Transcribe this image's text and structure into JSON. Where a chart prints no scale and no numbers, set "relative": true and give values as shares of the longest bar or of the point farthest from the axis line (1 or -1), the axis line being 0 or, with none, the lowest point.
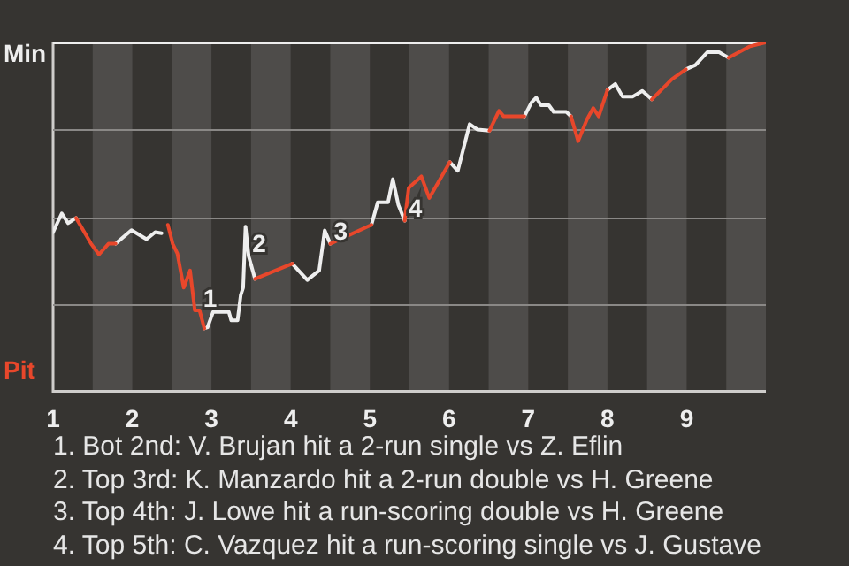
{
  "chart_data": {
    "type": "line",
    "relative": true,
    "xlim": [
      1,
      10
    ],
    "xticks": [
      1,
      2,
      3,
      4,
      5,
      6,
      7,
      8,
      9
    ],
    "legend": false,
    "marker": "none",
    "line_style": "solid",
    "series": [
      {
        "color": "#eeeeee",
        "x": [
          1.0,
          1.11,
          1.19,
          1.29,
          1.4,
          1.79,
          1.99,
          2.18,
          2.29,
          2.37,
          2.48,
          2.91,
          2.95,
          3.02,
          3.22,
          3.25,
          3.33,
          3.37,
          3.4,
          3.43,
          3.47,
          3.55,
          3.8,
          4.02,
          4.21,
          4.36,
          4.43,
          4.5,
          4.8,
          5.02,
          5.1,
          5.23,
          5.29,
          5.36,
          5.44,
          5.6,
          6.01,
          6.11,
          6.26,
          6.36,
          6.51,
          6.8,
          6.95,
          7.04,
          7.1,
          7.16,
          7.26,
          7.32,
          7.48,
          7.54,
          7.8,
          8.0,
          8.1,
          8.19,
          8.32,
          8.44,
          8.56,
          8.7,
          8.99,
          9.11,
          9.26,
          9.41,
          9.53
        ],
        "values": [
          0.456,
          0.51,
          0.482,
          0.497,
          null,
          0.423,
          0.462,
          0.436,
          0.456,
          0.453,
          null,
          0.18,
          0.183,
          0.227,
          0.227,
          0.203,
          0.203,
          0.276,
          0.297,
          0.472,
          0.387,
          0.322,
          null,
          0.366,
          0.319,
          0.346,
          0.461,
          0.423,
          null,
          0.477,
          0.542,
          0.542,
          0.608,
          0.534,
          0.489,
          null,
          0.657,
          0.632,
          0.766,
          0.75,
          0.747,
          null,
          0.788,
          0.828,
          0.842,
          0.82,
          0.82,
          0.801,
          0.801,
          0.788,
          null,
          0.864,
          0.881,
          0.845,
          0.845,
          0.861,
          0.837,
          null,
          0.923,
          0.935,
          0.972,
          0.972,
          0.956
        ]
      },
      {
        "color": "#e8472b",
        "x": [
          1.29,
          1.48,
          1.58,
          1.7,
          1.79,
          2.1,
          2.45,
          2.51,
          2.57,
          2.65,
          2.73,
          2.79,
          2.85,
          2.91,
          3.2,
          3.55,
          4.02,
          4.2,
          4.5,
          5.02,
          5.2,
          5.44,
          5.49,
          5.65,
          5.75,
          6.01,
          6.3,
          6.51,
          6.63,
          6.69,
          6.95,
          7.3,
          7.54,
          7.63,
          7.74,
          7.82,
          7.89,
          8.0,
          8.3,
          8.56,
          8.81,
          8.99,
          9.2,
          9.53,
          9.8,
          10
        ],
        "values": [
          0.497,
          0.423,
          0.392,
          0.423,
          0.423,
          null,
          0.477,
          0.423,
          0.395,
          0.297,
          0.346,
          0.232,
          0.232,
          0.18,
          null,
          0.322,
          0.366,
          null,
          0.423,
          0.477,
          null,
          0.489,
          0.583,
          0.616,
          0.554,
          0.657,
          null,
          0.747,
          0.804,
          0.788,
          0.788,
          null,
          0.788,
          0.717,
          0.779,
          0.812,
          0.788,
          0.864,
          null,
          0.837,
          0.894,
          0.923,
          null,
          0.956,
          0.989,
          1
        ]
      }
    ],
    "ref_lines": [
      {
        "axis": "y",
        "value": 1,
        "label": "Min",
        "color": "#eeeeee"
      },
      {
        "axis": "y",
        "value": 0.75,
        "color": "#8a8886"
      },
      {
        "axis": "y",
        "value": 0.5,
        "color": "#8a8886"
      },
      {
        "axis": "y",
        "value": 0.25,
        "color": "#8a8886"
      }
    ],
    "bands": [
      {
        "axis": "x",
        "from": 1.5,
        "to": 2,
        "color": "#4e4c4a"
      },
      {
        "axis": "x",
        "from": 2.5,
        "to": 3,
        "color": "#4e4c4a"
      },
      {
        "axis": "x",
        "from": 3.5,
        "to": 4,
        "color": "#4e4c4a"
      },
      {
        "axis": "x",
        "from": 4.5,
        "to": 5,
        "color": "#4e4c4a"
      },
      {
        "axis": "x",
        "from": 5.5,
        "to": 6,
        "color": "#4e4c4a"
      },
      {
        "axis": "x",
        "from": 6.5,
        "to": 7,
        "color": "#4e4c4a"
      },
      {
        "axis": "x",
        "from": 7.5,
        "to": 8,
        "color": "#4e4c4a"
      },
      {
        "axis": "x",
        "from": 8.5,
        "to": 9,
        "color": "#4e4c4a"
      },
      {
        "axis": "x",
        "from": 9.5,
        "to": 10,
        "color": "#4e4c4a"
      }
    ],
    "annotations": [
      "Pit",
      {
        "text": "1",
        "x": 2.85,
        "y": 0.232
      },
      {
        "text": "2",
        "x": 3.47,
        "y": 0.387
      },
      {
        "text": "3",
        "x": 4.5,
        "y": 0.423
      },
      {
        "text": "4",
        "x": 5.44,
        "y": 0.489
      },
      "1. Bot 2nd: V. Brujan hit a 2-run single vs Z. Eflin",
      "2. Top 3rd: K. Manzardo hit a 2-run double vs H. Greene",
      "3. Top 4th: J. Lowe hit a run-scoring double vs H. Greene",
      "4. Top 5th: C. Vazquez hit a run-scoring single vs J. Gustave"
    ]
  }
}
